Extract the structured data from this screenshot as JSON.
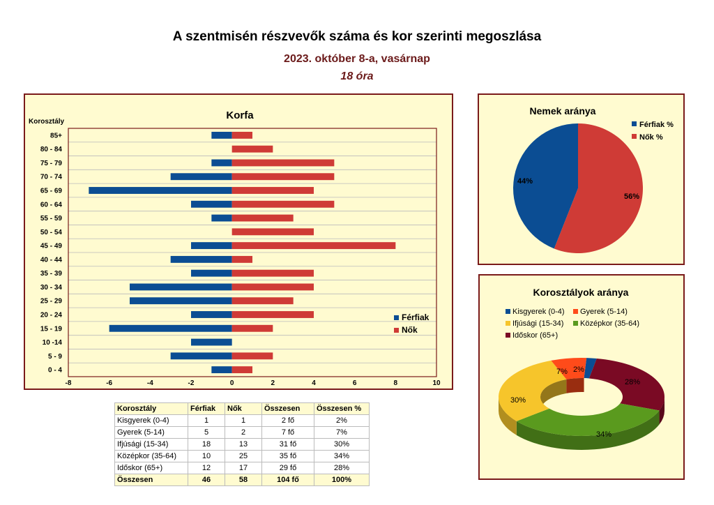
{
  "header": {
    "title": "A szentmisén részvevők száma és kor szerinti megoszlása",
    "date": "2023. október 8-a, vasárnap",
    "time": "18 óra"
  },
  "colors": {
    "male": "#0b4d93",
    "female": "#cf3b36",
    "kisgyerek": "#0b4d93",
    "gyerek": "#ff4b1a",
    "ifjusagi": "#f6c52b",
    "kozepkor": "#5a9a1e",
    "idoskor": "#7a0a24"
  },
  "chart_data": [
    {
      "type": "bar",
      "orientation": "horizontal",
      "title": "Korfa",
      "ylabel": "Korosztály",
      "categories": [
        "0 - 4",
        "5 - 9",
        "10 -14",
        "15 - 19",
        "20 - 24",
        "25 - 29",
        "30 - 34",
        "35 - 39",
        "40 - 44",
        "45 - 49",
        "50 - 54",
        "55 - 59",
        "60 - 64",
        "65 - 69",
        "70 - 74",
        "75 - 79",
        "80 - 84",
        "85+"
      ],
      "series": [
        {
          "name": "Férfiak",
          "values": [
            -1,
            -3,
            -2,
            -6,
            -2,
            -5,
            -5,
            -2,
            -3,
            -2,
            0,
            -1,
            -2,
            -7,
            -3,
            -1,
            0,
            -1
          ]
        },
        {
          "name": "Nők",
          "values": [
            1,
            2,
            0,
            2,
            4,
            3,
            4,
            4,
            1,
            8,
            4,
            3,
            5,
            4,
            5,
            5,
            2,
            1
          ]
        }
      ],
      "xlim": [
        -8,
        10
      ],
      "xticks": [
        "-8",
        "-6",
        "-4",
        "-2",
        "0",
        "2",
        "4",
        "6",
        "8",
        "10"
      ],
      "legend": "right",
      "grid": true
    },
    {
      "type": "pie",
      "title": "Nemek aránya",
      "labels": [
        "Férfiak %",
        "Nők %"
      ],
      "values": [
        44,
        56
      ],
      "data_labels": [
        "44%",
        "56%"
      ],
      "legend": "top-right"
    },
    {
      "type": "pie",
      "variant": "donut-3d",
      "title": "Korosztályok aránya",
      "labels": [
        "Kisgyerek (0-4)",
        "Gyerek (5-14)",
        "Ifjúsági (15-34)",
        "Középkor (35-64)",
        "Időskor (65+)"
      ],
      "values": [
        2,
        7,
        30,
        34,
        28
      ],
      "data_labels": [
        "2%",
        "7%",
        "30%",
        "34%",
        "28%"
      ],
      "legend": "top"
    }
  ],
  "table": {
    "headers": [
      "Korosztály",
      "Férfiak",
      "Nők",
      "Összesen",
      "Összesen %"
    ],
    "rows": [
      [
        "Kisgyerek (0-4)",
        "1",
        "1",
        "2 fő",
        "2%"
      ],
      [
        "Gyerek (5-14)",
        "5",
        "2",
        "7 fő",
        "7%"
      ],
      [
        "Ifjúsági (15-34)",
        "18",
        "13",
        "31 fő",
        "30%"
      ],
      [
        "Középkor (35-64)",
        "10",
        "25",
        "35 fő",
        "34%"
      ],
      [
        "Időskor (65+)",
        "12",
        "17",
        "29 fő",
        "28%"
      ]
    ],
    "total": [
      "Összesen",
      "46",
      "58",
      "104 fő",
      "100%"
    ]
  }
}
